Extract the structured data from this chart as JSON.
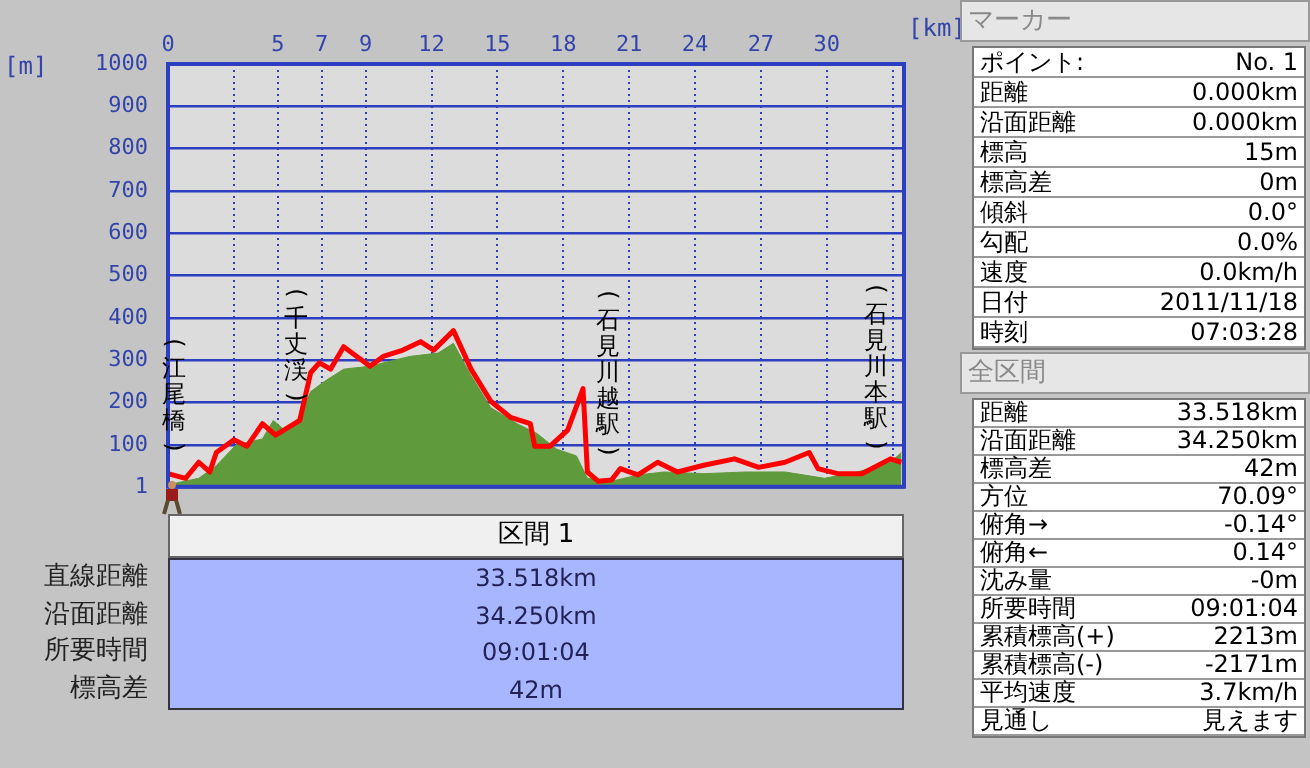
{
  "chart_data": [
    {
      "type": "line",
      "xlabel": "[km]",
      "ylabel": "[m]",
      "xlim": [
        0,
        33.518
      ],
      "ylim": [
        1,
        1000
      ],
      "xticks": [
        0,
        {
          "value": 3,
          "label": null
        },
        5,
        7,
        9,
        12,
        15,
        18,
        21,
        24,
        27,
        30,
        {
          "value": 33,
          "label": null
        }
      ],
      "yticks": [
        1,
        100,
        200,
        300,
        400,
        500,
        600,
        700,
        800,
        900,
        1000
      ],
      "grid": true,
      "legend": false,
      "marker": "none",
      "series": [
        {
          "type": "area",
          "color": "#5f9a3c",
          "x": [
            0,
            1.4,
            2.2,
            3.1,
            4.3,
            4.8,
            5.3,
            6.0,
            6.5,
            7.1,
            8.0,
            9.2,
            11.0,
            12.3,
            13.0,
            13.8,
            14.7,
            15.9,
            16.8,
            17.7,
            18.6,
            19.1,
            20.2,
            21.4,
            22.6,
            24.4,
            26.3,
            28.1,
            29.9,
            31.4,
            32.9,
            33.4
          ],
          "values": [
            6,
            21,
            51,
            100,
            114,
            158,
            135,
            165,
            226,
            249,
            279,
            286,
            309,
            317,
            340,
            264,
            188,
            150,
            127,
            90,
            74,
            21,
            14,
            29,
            36,
            32,
            36,
            36,
            21,
            36,
            59,
            82
          ]
        },
        {
          "type": "line",
          "color": "#ff0000",
          "x": [
            0,
            0.8,
            1.4,
            1.9,
            2.2,
            3.0,
            3.6,
            4.3,
            4.9,
            6.0,
            6.5,
            6.9,
            7.4,
            8.0,
            8.6,
            9.2,
            9.8,
            10.7,
            11.5,
            12.1,
            13.0,
            13.8,
            14.7,
            15.6,
            16.5,
            16.7,
            17.4,
            18.2,
            18.9,
            19.1,
            19.6,
            20.2,
            20.6,
            21.4,
            22.3,
            23.2,
            24.4,
            25.8,
            26.9,
            28.1,
            29.2,
            29.6,
            30.5,
            31.6,
            32.9,
            33.4
          ],
          "values": [
            32,
            21,
            59,
            36,
            82,
            112,
            97,
            150,
            123,
            158,
            271,
            294,
            279,
            332,
            309,
            286,
            309,
            324,
            344,
            324,
            370,
            279,
            203,
            165,
            150,
            97,
            97,
            135,
            233,
            36,
            14,
            17,
            44,
            29,
            59,
            36,
            52,
            67,
            47,
            59,
            82,
            44,
            32,
            32,
            67,
            59
          ]
        }
      ],
      "annotations": [
        "(江尾橋)",
        "(千丈渓)",
        "(石見川越駅)",
        "(石見川本駅)"
      ]
    },
    {
      "type": "other",
      "title": "区間 1",
      "annotations": [
        "直線距離",
        "33.518km",
        "沿面距離",
        "34.250km",
        "所要時間",
        "09:01:04",
        "標高差",
        "42m"
      ]
    },
    {
      "type": "other",
      "title": "マーカー",
      "annotations": [
        "ポイント:",
        "No. 1",
        "距離",
        "0.000km",
        "沿面距離",
        "0.000km",
        "標高",
        "15m",
        "標高差",
        "0m",
        "傾斜",
        "0.0°",
        "勾配",
        "0.0%",
        "速度",
        "0.0km/h",
        "日付",
        "2011/11/18",
        "時刻",
        "07:03:28"
      ]
    },
    {
      "type": "other",
      "title": "全区間",
      "annotations": [
        "距離",
        "33.518km",
        "沿面距離",
        "34.250km",
        "標高差",
        "42m",
        "方位",
        "70.09°",
        "俯角→",
        "-0.14°",
        "俯角←",
        "0.14°",
        "沈み量",
        "-0m",
        "所要時間",
        "09:01:04",
        "累積標高(+)",
        "2213m",
        "累積標高(-)",
        "-2171m",
        "平均速度",
        "3.7km/h",
        "見通し",
        "見えます"
      ]
    }
  ]
}
